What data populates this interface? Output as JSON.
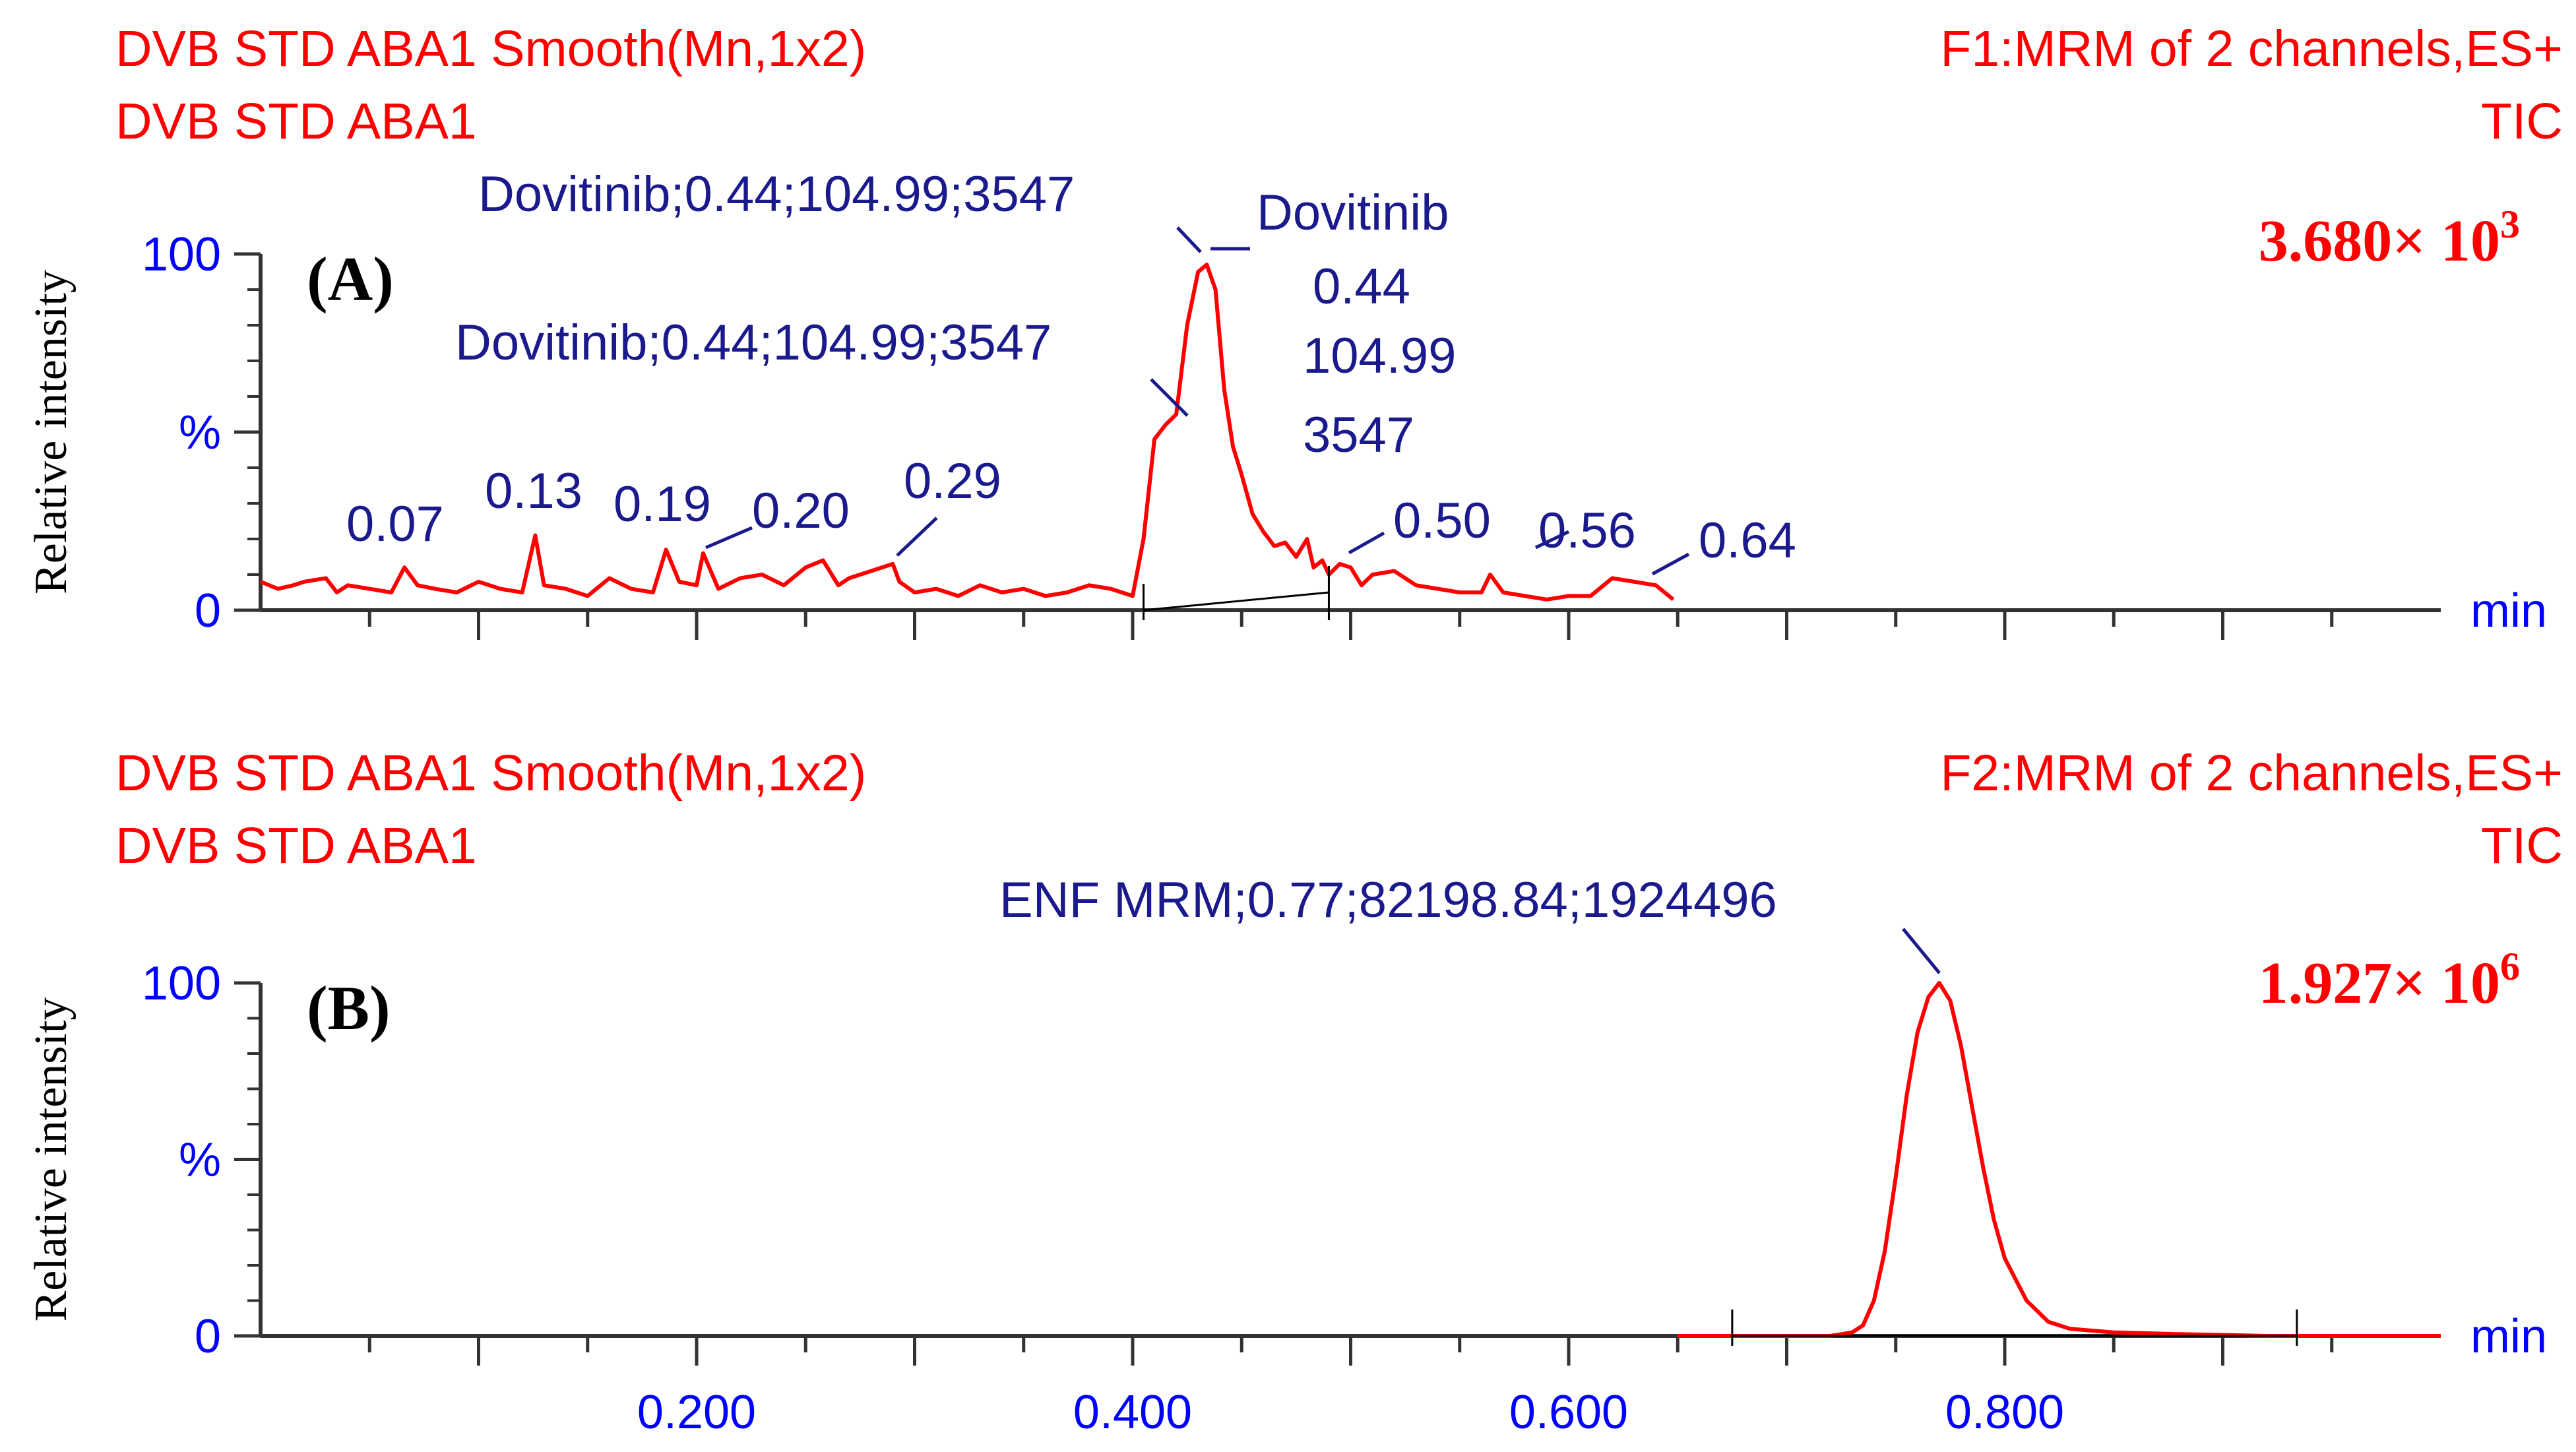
{
  "chart_data": [
    {
      "type": "line",
      "panel_label": "(A)",
      "header_left": [
        "DVB STD ABA1 Smooth(Mn,1x2)",
        "DVB STD ABA1"
      ],
      "header_right": [
        "F1:MRM of 2 channels,ES+",
        "TIC"
      ],
      "scale_factor": {
        "mantissa": "3.680× 10",
        "exponent": "3"
      },
      "ylabel": "Relative intensity",
      "y_ticks": [
        "100",
        "%",
        "0"
      ],
      "x_unit": "min",
      "xlim": [
        0.0,
        1.0
      ],
      "ylim": [
        0,
        100
      ],
      "series": [
        {
          "color": "#ff0000",
          "x": [
            0.0,
            0.008,
            0.015,
            0.02,
            0.03,
            0.035,
            0.04,
            0.05,
            0.06,
            0.066,
            0.072,
            0.08,
            0.09,
            0.1,
            0.11,
            0.12,
            0.126,
            0.13,
            0.14,
            0.15,
            0.16,
            0.17,
            0.18,
            0.186,
            0.192,
            0.2,
            0.203,
            0.21,
            0.22,
            0.23,
            0.24,
            0.25,
            0.258,
            0.265,
            0.27,
            0.28,
            0.29,
            0.293,
            0.3,
            0.31,
            0.32,
            0.33,
            0.34,
            0.35,
            0.36,
            0.37,
            0.38,
            0.39,
            0.4,
            0.405,
            0.41,
            0.415,
            0.42,
            0.425,
            0.43,
            0.434,
            0.438,
            0.442,
            0.446,
            0.45,
            0.455,
            0.46,
            0.465,
            0.47,
            0.475,
            0.48,
            0.483,
            0.487,
            0.49,
            0.495,
            0.5,
            0.505,
            0.51,
            0.52,
            0.53,
            0.54,
            0.55,
            0.56,
            0.564,
            0.57,
            0.58,
            0.59,
            0.6,
            0.61,
            0.62,
            0.63,
            0.64,
            0.648
          ],
          "y": [
            8,
            6,
            7,
            8,
            9,
            5,
            7,
            6,
            5,
            12,
            7,
            6,
            5,
            8,
            6,
            5,
            21,
            7,
            6,
            4,
            9,
            6,
            5,
            17,
            8,
            7,
            16,
            6,
            9,
            10,
            7,
            12,
            14,
            7,
            9,
            11,
            13,
            8,
            5,
            6,
            4,
            7,
            5,
            6,
            4,
            5,
            7,
            6,
            4,
            20,
            48,
            52,
            55,
            80,
            95,
            97,
            90,
            62,
            46,
            38,
            27,
            22,
            18,
            19,
            15,
            20,
            12,
            14,
            10,
            13,
            12,
            7,
            10,
            11,
            7,
            6,
            5,
            5,
            10,
            5,
            4,
            3,
            4,
            4,
            9,
            8,
            7,
            3
          ],
          "peak_labels": [
            {
              "x": 0.07,
              "y": 12,
              "text": "0.07"
            },
            {
              "x": 0.13,
              "y": 21,
              "text": "0.13"
            },
            {
              "x": 0.19,
              "y": 17,
              "text": "0.19"
            },
            {
              "x": 0.2,
              "y": 16,
              "text": "0.20"
            },
            {
              "x": 0.29,
              "y": 13,
              "text": "0.29"
            },
            {
              "x": 0.5,
              "y": 13,
              "text": "0.50"
            },
            {
              "x": 0.56,
              "y": 10,
              "text": "0.56"
            },
            {
              "x": 0.64,
              "y": 9,
              "text": "0.64"
            },
            {
              "x": 0.44,
              "y": 97,
              "text": "Dovitinib;0.44;104.99;3547"
            },
            {
              "x": 0.42,
              "y": 52,
              "text": "Dovitinib;0.44;104.99;3547"
            },
            {
              "x": 0.44,
              "y": 100,
              "text": [
                "Dovitinib",
                "0.44",
                "104.99",
                "3547"
              ]
            }
          ],
          "integration_baseline": {
            "x": [
              0.405,
              0.49
            ],
            "y": [
              0,
              5
            ]
          }
        }
      ]
    },
    {
      "type": "line",
      "panel_label": "(B)",
      "header_left": [
        "DVB STD ABA1 Smooth(Mn,1x2)",
        "DVB STD ABA1"
      ],
      "header_right": [
        "F2:MRM of 2 channels,ES+",
        "TIC"
      ],
      "scale_factor": {
        "mantissa": "1.927× 10",
        "exponent": "6"
      },
      "ylabel": "Relative intensity",
      "y_ticks": [
        "100",
        "%",
        "0"
      ],
      "x_unit": "min",
      "x_ticks": [
        "0.200",
        "0.400",
        "0.600",
        "0.800"
      ],
      "xlim": [
        0.0,
        1.0
      ],
      "ylim": [
        0,
        100
      ],
      "series": [
        {
          "color": "#ff0000",
          "x": [
            0.65,
            0.7,
            0.72,
            0.73,
            0.735,
            0.74,
            0.745,
            0.75,
            0.755,
            0.76,
            0.765,
            0.77,
            0.775,
            0.78,
            0.785,
            0.79,
            0.795,
            0.8,
            0.81,
            0.82,
            0.83,
            0.85,
            0.88,
            0.92,
            1.0
          ],
          "y": [
            0,
            0,
            0,
            1,
            3,
            10,
            24,
            45,
            68,
            86,
            96,
            100,
            95,
            82,
            65,
            48,
            33,
            22,
            10,
            4,
            2,
            1,
            0.5,
            0,
            0
          ],
          "peak_labels": [
            {
              "x": 0.77,
              "y": 100,
              "text": "ENF MRM;0.77;82198.84;1924496"
            }
          ],
          "integration_baseline": {
            "x": [
              0.675,
              0.934
            ],
            "y": [
              0,
              0
            ]
          }
        }
      ]
    }
  ]
}
